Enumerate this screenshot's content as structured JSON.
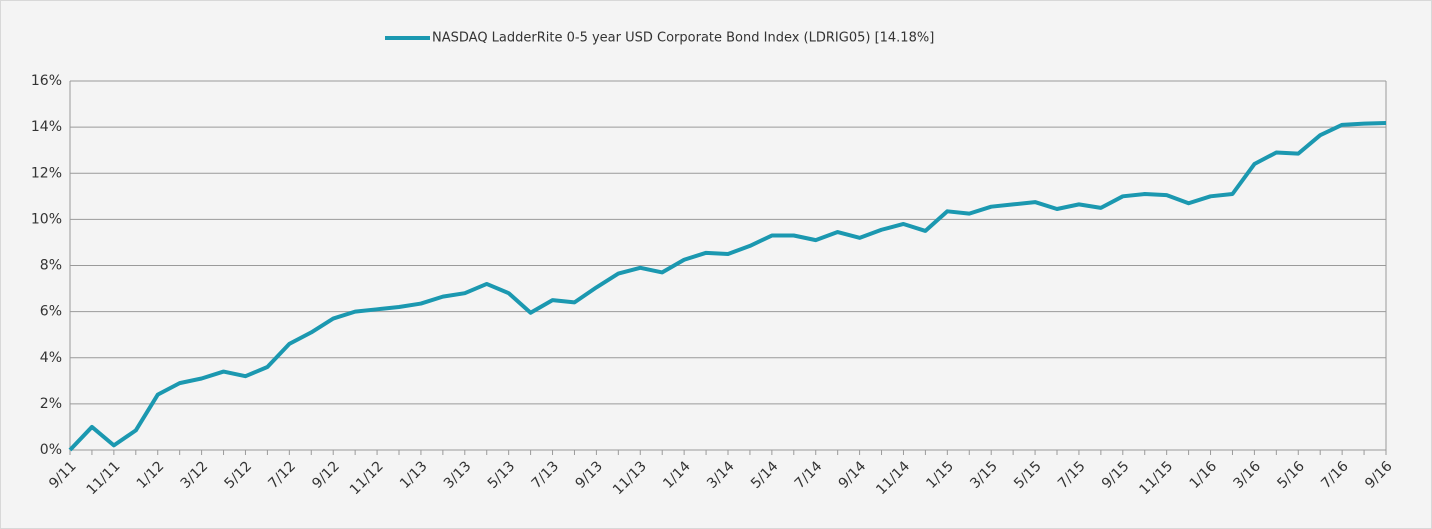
{
  "chart_data": {
    "type": "line",
    "categories": [
      "9/11",
      null,
      "11/11",
      null,
      "1/12",
      null,
      "3/12",
      null,
      "5/12",
      null,
      "7/12",
      null,
      "9/12",
      null,
      "11/12",
      null,
      "1/13",
      null,
      "3/13",
      null,
      "5/13",
      null,
      "7/13",
      null,
      "9/13",
      null,
      "11/13",
      null,
      "1/14",
      null,
      "3/14",
      null,
      "5/14",
      null,
      "7/14",
      null,
      "9/14",
      null,
      "11/14",
      null,
      "1/15",
      null,
      "3/15",
      null,
      "5/15",
      null,
      "7/15",
      null,
      "9/15",
      null,
      "11/15",
      null,
      "1/16",
      null,
      "3/16",
      null,
      "5/16",
      null,
      "7/16",
      null,
      "9/16"
    ],
    "series": [
      {
        "name": "NASDAQ LadderRite 0-5 year USD Corporate Bond Index (LDRIG05) [14.18%]",
        "color": "#1b98b0",
        "values": [
          0,
          1.0,
          0.2,
          0.85,
          2.4,
          2.9,
          3.1,
          3.4,
          3.2,
          3.6,
          4.6,
          5.1,
          5.7,
          6.0,
          6.1,
          6.2,
          6.35,
          6.65,
          6.8,
          7.2,
          6.8,
          5.95,
          6.5,
          6.4,
          7.05,
          7.65,
          7.9,
          7.7,
          8.25,
          8.55,
          8.5,
          8.85,
          9.3,
          9.3,
          9.1,
          9.45,
          9.2,
          9.55,
          9.8,
          9.5,
          10.35,
          10.25,
          10.55,
          10.65,
          10.75,
          10.45,
          10.65,
          10.5,
          11.0,
          11.1,
          11.05,
          10.7,
          11.0,
          11.1,
          12.4,
          12.9,
          12.85,
          13.65,
          14.1,
          14.15,
          14.18
        ]
      }
    ],
    "ylim": [
      0,
      16
    ],
    "yticks": [
      {
        "value": 0,
        "label": "0%"
      },
      {
        "value": 2,
        "label": "2%"
      },
      {
        "value": 4,
        "label": "4%"
      },
      {
        "value": 6,
        "label": "6%"
      },
      {
        "value": 8,
        "label": "8%"
      },
      {
        "value": 10,
        "label": "10%"
      },
      {
        "value": 12,
        "label": "12%"
      },
      {
        "value": 14,
        "label": "14%"
      },
      {
        "value": 16,
        "label": "16%"
      }
    ],
    "grid": true,
    "legend": "top"
  }
}
